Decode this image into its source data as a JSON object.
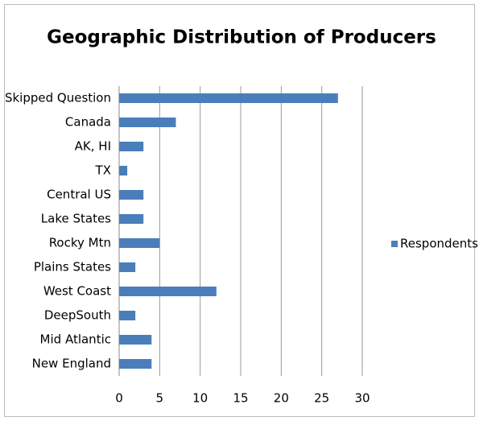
{
  "chart_data": {
    "type": "bar",
    "orientation": "horizontal",
    "title": "Geographic Distribution of Producers",
    "categories": [
      "Skipped Question",
      "Canada",
      "AK, HI",
      "TX",
      "Central US",
      "Lake States",
      "Rocky Mtn",
      "Plains States",
      "West Coast",
      "DeepSouth",
      "Mid Atlantic",
      "New England"
    ],
    "series": [
      {
        "name": "Respondents",
        "color": "#4a7ebb",
        "values": [
          27,
          7,
          3,
          1,
          3,
          3,
          5,
          2,
          12,
          2,
          4,
          4
        ]
      }
    ],
    "xlim": [
      0,
      30
    ],
    "xticks": [
      0,
      5,
      10,
      15,
      20,
      25,
      30
    ],
    "grid": true,
    "legend": "right"
  }
}
